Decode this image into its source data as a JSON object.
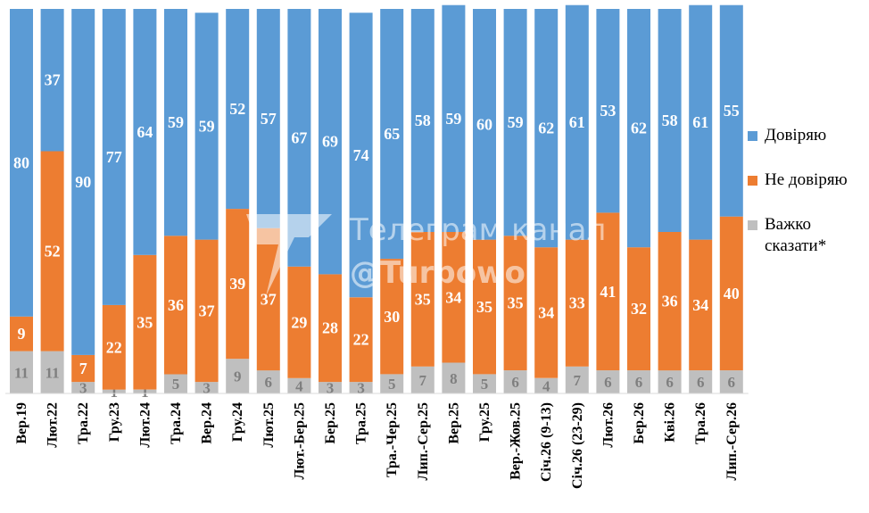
{
  "chart_data": {
    "type": "bar",
    "stacked": true,
    "percent": true,
    "categories": [
      "Вер.19",
      "Лют.22",
      "Тра.22",
      "Гру.23",
      "Лют.24",
      "Тра.24",
      "Вер.24",
      "Гру.24",
      "Лют.25",
      "Лют.-Бер.25",
      "Бер.25",
      "Тра.25",
      "Тра.-Чер.25",
      "Лип.-Сер.25",
      "Вер.25",
      "Гру.25",
      "Вер.-Жов.25",
      "Січ.26 (9-13)",
      "Січ.26 (23-29)",
      "Лют.26",
      "Бер.26",
      "Кві.26",
      "Тра.26",
      "Лип.-Сер.26"
    ],
    "series": [
      {
        "name": "Важко сказати*",
        "color": "#bfbfbf",
        "label_color": "#7f7f7f",
        "values": [
          11,
          11,
          3,
          1,
          1,
          5,
          3,
          9,
          6,
          4,
          3,
          3,
          5,
          7,
          8,
          5,
          6,
          4,
          7,
          6,
          6,
          6,
          6,
          6
        ]
      },
      {
        "name": "Не довіряю",
        "color": "#ed7d31",
        "label_color": "#ffffff",
        "values": [
          9,
          52,
          7,
          22,
          35,
          36,
          37,
          39,
          37,
          29,
          28,
          22,
          30,
          35,
          34,
          35,
          35,
          34,
          33,
          41,
          32,
          36,
          34,
          40
        ]
      },
      {
        "name": "Довіряю",
        "color": "#5b9bd5",
        "label_color": "#ffffff",
        "values": [
          80,
          37,
          90,
          77,
          64,
          59,
          59,
          52,
          57,
          67,
          69,
          74,
          65,
          58,
          59,
          60,
          59,
          62,
          61,
          53,
          62,
          58,
          61,
          55
        ]
      }
    ],
    "ylim": [
      0,
      100
    ],
    "grid": false,
    "legend": "right"
  },
  "legend": [
    {
      "label": "Довіряю",
      "color": "#5b9bd5"
    },
    {
      "label": "Не довіряю",
      "color": "#ed7d31"
    },
    {
      "label": "Важко сказати*",
      "color": "#bfbfbf"
    }
  ],
  "watermark": {
    "line1": "Телеграм канал",
    "line2": "@Turbowo"
  }
}
